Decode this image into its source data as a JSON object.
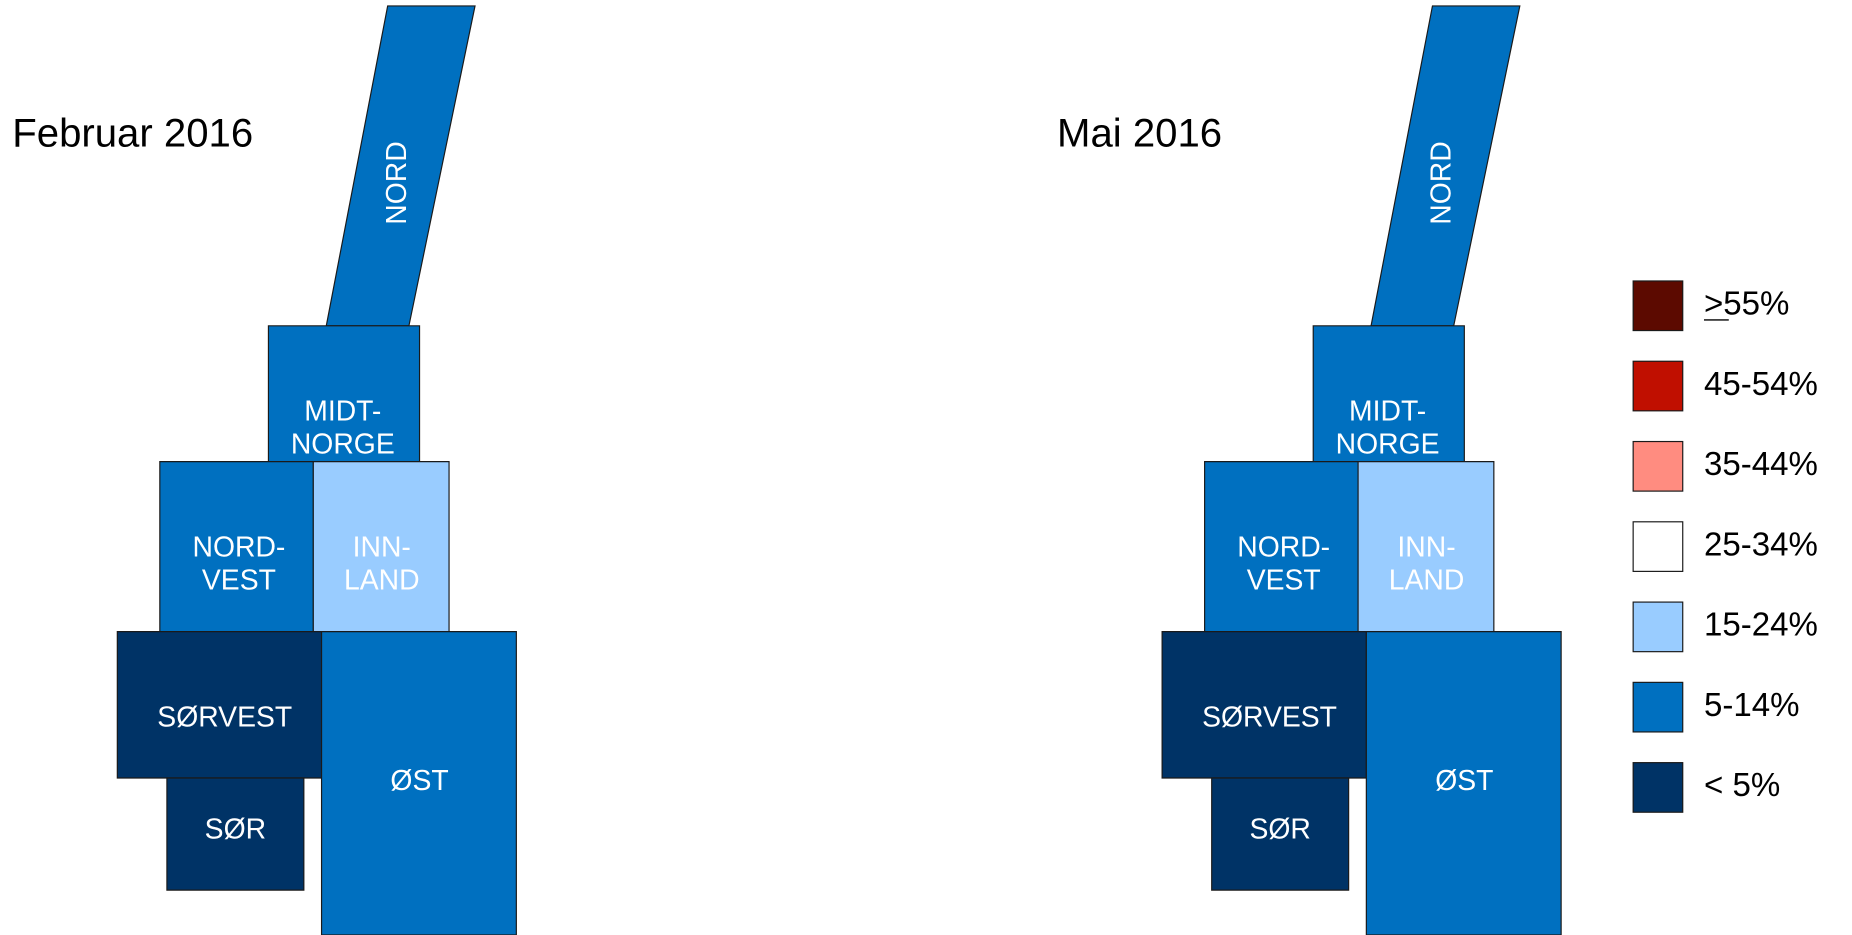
{
  "maps": [
    {
      "title": "Februar 2016",
      "regions": [
        {
          "lines": [
            "NORD"
          ],
          "color": "#0070c0"
        },
        {
          "lines": [
            "MIDT-",
            "NORGE"
          ],
          "color": "#0070c0"
        },
        {
          "lines": [
            "NORD-",
            "VEST"
          ],
          "color": "#0070c0"
        },
        {
          "lines": [
            "INN-",
            "LAND"
          ],
          "color": "#99ccff"
        },
        {
          "lines": [
            "SØRVEST"
          ],
          "color": "#003366"
        },
        {
          "lines": [
            "SØR"
          ],
          "color": "#003366"
        },
        {
          "lines": [
            "ØST"
          ],
          "color": "#0070c0"
        }
      ]
    },
    {
      "title": "Mai 2016",
      "regions": [
        {
          "lines": [
            "NORD"
          ],
          "color": "#0070c0"
        },
        {
          "lines": [
            "MIDT-",
            "NORGE"
          ],
          "color": "#0070c0"
        },
        {
          "lines": [
            "NORD-",
            "VEST"
          ],
          "color": "#0070c0"
        },
        {
          "lines": [
            "INN-",
            "LAND"
          ],
          "color": "#99ccff"
        },
        {
          "lines": [
            "SØRVEST"
          ],
          "color": "#003366"
        },
        {
          "lines": [
            "SØR"
          ],
          "color": "#003366"
        },
        {
          "lines": [
            "ØST"
          ],
          "color": "#0070c0"
        }
      ]
    }
  ],
  "legend": [
    {
      "label": ">55%",
      "color": "#5c0a00"
    },
    {
      "label": "45-54%",
      "color": "#c00f00"
    },
    {
      "label": "35-44%",
      "color": "#ff8c80"
    },
    {
      "label": "25-34%",
      "color": "#ffffff"
    },
    {
      "label": "15-24%",
      "color": "#99ccff"
    },
    {
      "label": "5-14%",
      "color": "#0070c0"
    },
    {
      "label": "< 5%",
      "color": "#003366"
    }
  ]
}
